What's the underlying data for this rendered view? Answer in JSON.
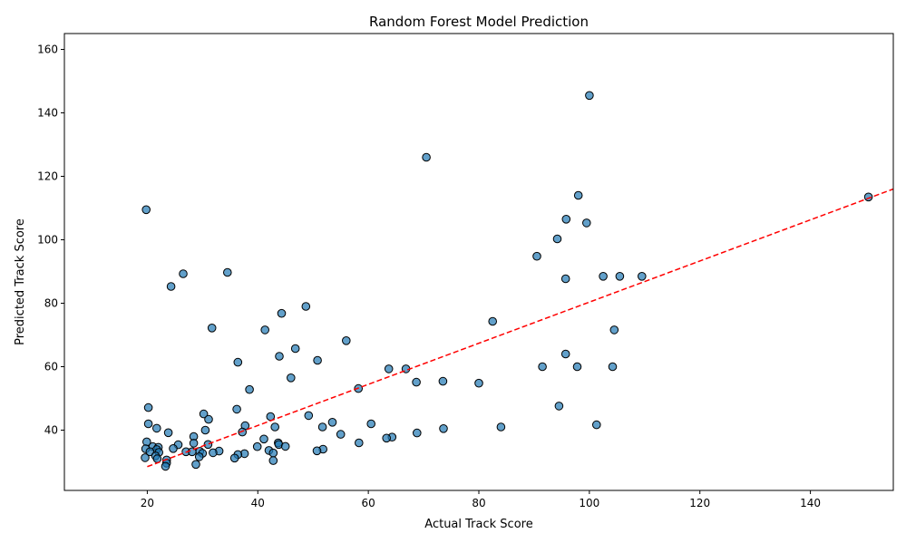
{
  "chart_data": {
    "type": "scatter",
    "title": "Random Forest Model Prediction",
    "xlabel": "Actual Track Score",
    "ylabel": "Predicted Track Score",
    "xlim": [
      5,
      155
    ],
    "ylim": [
      21,
      165
    ],
    "xticks": [
      20,
      40,
      60,
      80,
      100,
      120,
      140
    ],
    "yticks": [
      40,
      60,
      80,
      100,
      120,
      140,
      160
    ],
    "grid": false,
    "colors": {
      "points": "#1f77b4",
      "reference_line": "#ff0000"
    },
    "reference_line": {
      "style": "dashed",
      "x": [
        20,
        155
      ],
      "y": [
        28.5,
        116
      ]
    },
    "points": [
      [
        100.0,
        145.5
      ],
      [
        70.5,
        126.0
      ],
      [
        98.0,
        114.0
      ],
      [
        150.5,
        113.5
      ],
      [
        19.8,
        109.5
      ],
      [
        95.8,
        106.5
      ],
      [
        99.5,
        105.3
      ],
      [
        94.2,
        100.3
      ],
      [
        90.5,
        94.8
      ],
      [
        26.5,
        89.3
      ],
      [
        34.5,
        89.7
      ],
      [
        102.5,
        88.5
      ],
      [
        105.5,
        88.5
      ],
      [
        109.5,
        88.5
      ],
      [
        95.7,
        87.7
      ],
      [
        24.3,
        85.3
      ],
      [
        48.7,
        79.0
      ],
      [
        44.3,
        76.8
      ],
      [
        82.5,
        74.3
      ],
      [
        31.7,
        72.2
      ],
      [
        41.3,
        71.6
      ],
      [
        104.5,
        71.6
      ],
      [
        56.0,
        68.2
      ],
      [
        46.8,
        65.7
      ],
      [
        95.7,
        64.0
      ],
      [
        43.9,
        63.3
      ],
      [
        50.8,
        62.0
      ],
      [
        36.4,
        61.4
      ],
      [
        91.5,
        60.0
      ],
      [
        97.8,
        60.0
      ],
      [
        104.2,
        60.0
      ],
      [
        63.7,
        59.3
      ],
      [
        66.8,
        59.3
      ],
      [
        46.0,
        56.5
      ],
      [
        73.5,
        55.4
      ],
      [
        68.7,
        55.1
      ],
      [
        80.0,
        54.8
      ],
      [
        58.2,
        53.1
      ],
      [
        38.5,
        52.8
      ],
      [
        94.5,
        47.6
      ],
      [
        20.2,
        47.1
      ],
      [
        36.2,
        46.6
      ],
      [
        30.2,
        45.1
      ],
      [
        49.2,
        44.6
      ],
      [
        42.3,
        44.3
      ],
      [
        31.1,
        43.4
      ],
      [
        53.5,
        42.5
      ],
      [
        20.2,
        42.0
      ],
      [
        60.5,
        42.0
      ],
      [
        101.3,
        41.7
      ],
      [
        37.7,
        41.4
      ],
      [
        43.1,
        41.0
      ],
      [
        51.7,
        41.0
      ],
      [
        84.0,
        41.0
      ],
      [
        21.7,
        40.6
      ],
      [
        73.6,
        40.5
      ],
      [
        30.5,
        40.0
      ],
      [
        37.2,
        39.4
      ],
      [
        23.8,
        39.2
      ],
      [
        68.8,
        39.1
      ],
      [
        55.0,
        38.7
      ],
      [
        28.4,
        38.0
      ],
      [
        64.3,
        37.8
      ],
      [
        63.3,
        37.5
      ],
      [
        41.1,
        37.2
      ],
      [
        19.9,
        36.3
      ],
      [
        58.3,
        36.0
      ],
      [
        43.7,
        36.0
      ],
      [
        28.4,
        35.9
      ],
      [
        43.8,
        35.5
      ],
      [
        31.0,
        35.5
      ],
      [
        25.6,
        35.4
      ],
      [
        45.0,
        34.9
      ],
      [
        39.9,
        34.8
      ],
      [
        21.0,
        34.8
      ],
      [
        22.0,
        34.6
      ],
      [
        19.7,
        34.1
      ],
      [
        24.7,
        34.2
      ],
      [
        51.8,
        34.0
      ],
      [
        21.7,
        33.9
      ],
      [
        42.0,
        33.6
      ],
      [
        50.7,
        33.5
      ],
      [
        33.0,
        33.4
      ],
      [
        20.5,
        33.2
      ],
      [
        27.0,
        33.2
      ],
      [
        29.5,
        33.3
      ],
      [
        28.1,
        33.2
      ],
      [
        22.1,
        33.0
      ],
      [
        31.9,
        32.9
      ],
      [
        42.8,
        32.8
      ],
      [
        30.0,
        32.7
      ],
      [
        37.6,
        32.6
      ],
      [
        36.4,
        32.3
      ],
      [
        21.5,
        31.9
      ],
      [
        29.4,
        31.6
      ],
      [
        19.6,
        31.3
      ],
      [
        35.8,
        31.2
      ],
      [
        21.8,
        31.0
      ],
      [
        23.5,
        30.6
      ],
      [
        42.8,
        30.4
      ],
      [
        23.5,
        29.6
      ],
      [
        28.8,
        29.2
      ],
      [
        23.3,
        28.6
      ]
    ]
  }
}
